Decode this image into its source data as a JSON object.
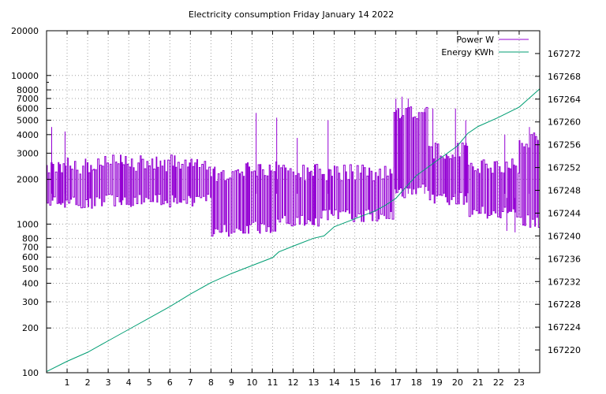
{
  "chart_data": {
    "type": "line",
    "title": "Electricity consumption Friday January 14 2022",
    "x": {
      "range": [
        0,
        24
      ],
      "ticks": [
        1,
        2,
        3,
        4,
        5,
        6,
        7,
        8,
        9,
        10,
        11,
        12,
        13,
        14,
        15,
        16,
        17,
        18,
        19,
        20,
        21,
        22,
        23
      ],
      "tick_labels": [
        "1",
        "2",
        "3",
        "4",
        "5",
        "6",
        "7",
        "8",
        "9",
        "10",
        "11",
        "12",
        "13",
        "14",
        "15",
        "16",
        "17",
        "18",
        "19",
        "20",
        "21",
        "22",
        "23"
      ]
    },
    "y_left": {
      "scale": "log",
      "range": [
        100,
        20000
      ],
      "ticks": [
        100,
        200,
        300,
        400,
        500,
        600,
        700,
        800,
        1000,
        2000,
        3000,
        4000,
        5000,
        6000,
        7000,
        8000,
        10000,
        20000
      ],
      "tick_labels": [
        "100",
        "200",
        "300",
        "400",
        "500",
        "600",
        "700",
        "800",
        "1000",
        "2000",
        "3000",
        "4000",
        "5000",
        "6000",
        "7000",
        "8000",
        "10000",
        "20000"
      ]
    },
    "y_right": {
      "scale": "linear",
      "range": [
        167216,
        167276
      ],
      "ticks": [
        167220,
        167224,
        167228,
        167232,
        167236,
        167240,
        167244,
        167248,
        167252,
        167256,
        167260,
        167264,
        167268,
        167272
      ],
      "tick_labels": [
        "167220",
        "167224",
        "167228",
        "167232",
        "167236",
        "167240",
        "167244",
        "167248",
        "167252",
        "167256",
        "167260",
        "167264",
        "167268",
        "167272"
      ]
    },
    "grid": true,
    "legend_position": "top-right",
    "series": [
      {
        "name": "Power W",
        "axis": "y_left",
        "color": "#9400d3",
        "style": "oscillating",
        "segments": [
          {
            "x": [
              0.0,
              2.3
            ],
            "high": 2550,
            "low": 1400
          },
          {
            "x": [
              2.3,
              8.0
            ],
            "high": 2650,
            "low": 1450
          },
          {
            "x": [
              8.0,
              9.3
            ],
            "high": 2200,
            "low": 920
          },
          {
            "x": [
              9.3,
              11.2
            ],
            "high": 2400,
            "low": 950
          },
          {
            "x": [
              11.2,
              13.4
            ],
            "high": 2300,
            "low": 1050
          },
          {
            "x": [
              13.4,
              16.9
            ],
            "high": 2300,
            "low": 1150
          },
          {
            "x": [
              16.9,
              18.0
            ],
            "high": 6000,
            "low": 1600
          },
          {
            "x": [
              18.0,
              18.6
            ],
            "high": 5800,
            "low": 1700
          },
          {
            "x": [
              18.6,
              20.5
            ],
            "high": 3200,
            "low": 1500
          },
          {
            "x": [
              20.5,
              23.0
            ],
            "high": 2500,
            "low": 1200
          },
          {
            "x": [
              23.0,
              24.0
            ],
            "high": 3800,
            "low": 1050
          }
        ],
        "peaks": [
          {
            "x": 0.25,
            "y": 4500
          },
          {
            "x": 0.9,
            "y": 4200
          },
          {
            "x": 10.2,
            "y": 5600
          },
          {
            "x": 11.2,
            "y": 5200
          },
          {
            "x": 12.2,
            "y": 3800
          },
          {
            "x": 13.7,
            "y": 5000
          },
          {
            "x": 17.0,
            "y": 7000
          },
          {
            "x": 17.3,
            "y": 7200
          },
          {
            "x": 17.6,
            "y": 7000
          },
          {
            "x": 18.4,
            "y": 6000
          },
          {
            "x": 18.8,
            "y": 6000
          },
          {
            "x": 19.9,
            "y": 6000
          },
          {
            "x": 20.4,
            "y": 5000
          },
          {
            "x": 22.3,
            "y": 4000
          },
          {
            "x": 23.5,
            "y": 4500
          },
          {
            "x": 8.5,
            "y": 870
          },
          {
            "x": 10.4,
            "y": 860
          },
          {
            "x": 22.4,
            "y": 900
          },
          {
            "x": 22.8,
            "y": 880
          }
        ]
      },
      {
        "name": "Energy KWh",
        "axis": "y_right",
        "color": "#009e73",
        "x": [
          0,
          1,
          2,
          3,
          4,
          5,
          6,
          7,
          8,
          9,
          10,
          11,
          11.3,
          12,
          13,
          13.5,
          14,
          15,
          16,
          16.5,
          17,
          17.5,
          18,
          19,
          20,
          20.5,
          21,
          22,
          23,
          24
        ],
        "y": [
          167216.2,
          167218.0,
          167219.6,
          167221.6,
          167223.6,
          167225.6,
          167227.6,
          167229.8,
          167231.8,
          167233.4,
          167234.8,
          167236.2,
          167237.2,
          167238.2,
          167239.6,
          167240.0,
          167241.6,
          167243.0,
          167244.4,
          167245.4,
          167246.6,
          167248.6,
          167250.6,
          167253.2,
          167255.8,
          167258.0,
          167259.2,
          167260.8,
          167262.6,
          167265.8
        ]
      }
    ]
  }
}
